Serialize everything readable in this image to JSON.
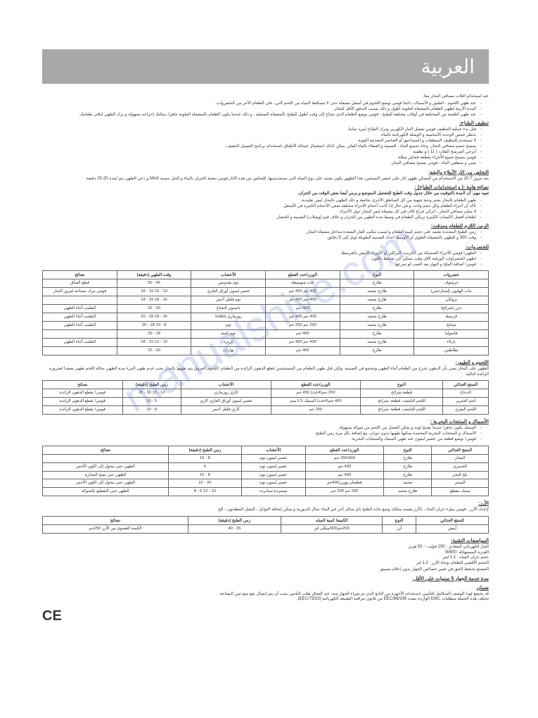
{
  "watermark": "manualshive.com",
  "title": "العربية",
  "intro": {
    "head": "عند استخدام الثلاث مصافي البخار معا:",
    "items": [
      "عند طهي اللحوم ، الطيور و الأسماك، دائما قومي بوضع اللحوم في أسفل مصفاة حتى لا تتساقط المياه من اللحم الني، على الطعام الآخر من الخضروات.",
      "المدة الأزمة لطهي الطعام بالمصفاة العلوية أطول و ذلك بسبب التدفق الأقل للبخار.",
      "عند طهي أطعمة من المختلفة في أوقات مختلفة للطبخ ، قومي بوضع الطعام الذي يحتاج إلى وقت أطول للطبخ بالمصفاة السفلية ، و ذلك عندما يكون الطعام بالمصفاة العلوية جاهزا, يمكنك إخراجه بسهولة و ترك الطهي لباقي طعامك."
    ]
  },
  "cleaning": {
    "head": "تنظيف الطباخ:",
    "items": [
      "قبل بدء عملية التنظيف قومي بفصل التيار الكهربي وترك الطباخ ليبرد تماما.",
      "بحظر غمس الوحدة الأساسية و الوصلة الكهربائية بالماء.",
      "لا تستخدم للتنظيف المنظفات و المساحيق أو العناصر المعدنية القوية.",
      "يمسح جسم مصافي البخار، وعاء تجميع الماء ، الصينية و الغطاء بالماء الفاتر. يمكن كذلك استعمال غسالة الأطباق باستخدام برنامج الغسيل الخفيف.",
      "أنزعي المرشح الطارد ( 11 ) و نظفيه.",
      "قومي بمسح جميع الأجزاء بقطعة قماش مبللة.",
      "صبي و شطفي الماء ، قومي بمسح مصافي البخار."
    ]
  },
  "descale": {
    "head": "التخلص من اثار الأملاح والبقع:",
    "text": "بعد مرور 7-10 من الاستخدام من الممكن ظهور اثار على عنصر التسخين، هذا الظهور يكون يعتمد على نوع المياه التي تستخدمينها. للتخلص من هذه الاثار قومي بتعبئة الخزان بالماء و الخل بنسبة MAX و دعي الطهي يتم لمدة 20-25 دقيقة."
  },
  "tips": {
    "head": "نصائح هامة :( و استخدامات الطباخ) :",
    "sub": "تنبيه مهم: أن المدة بالتوقيت من خلال جدول وقت الطبخ للتشغيل المتوضع و يزمن أيضا بعض الوقت من الخزان.",
    "items": [
      "طهي الطعام بالبخار يعتبر وجبة شهية من كل المناطق الأخرى بخاصة و ذلك الطهي بالبخار ليس تقليدية.",
      "تأكد أن أجزاء الطعام وكل حجم واحد، و في حال إذا كانت أحجام الأجزاء مختلفة ضعي الأحجام الكبيرة في الأسفل.",
      "لا تملئ مصافي البخار ، اتركي فراغ كاف في كل مصفاة ليمر البخار حول الأجزاء.",
      "لطعام أفضل الكميات الكبيرة نرتكي الطعام في وسط مدة الطهي من الخزان و خلاف قيم (وصلات) الصينية و الخضار."
    ]
  },
  "timing": {
    "head": "الزمن اللازم للطعام ومدقت:",
    "items": [
      "زمن الطبخ المحددة تعتمد على حجم كمية الطعام و ليست مكتب القار الصعدة مداخل مصفاة البخار.",
      "وقت 300 و للطهي بالمصفاة العلوي أو الأوسط اعداد الصينية الطويلة اوتل إلى 5 دقائق."
    ]
  },
  "veg": {
    "head": "للخضروات:",
    "items": [
      "الطهي! قومي الأجزاء الصميكة من الكرنب، البركلي أو الأوردة الأبيض بالقرنبيط.",
      "اطهي الخضراوات الورقية لأقل وقت ممكن كي تحتفظ باللون.",
      "قومي! اضافة الملح و البهار بعد العيب لو سرعها."
    ]
  },
  "tableVeg": {
    "headers": [
      "خضروات",
      "النوع",
      "الوزن/عدد القطع",
      "الأعشاب",
      "وقت الطهي (دقيقة)",
      "نصائح"
    ],
    "rows": [
      [
        "خرشوف",
        "طازج",
        "ثلاث متوسطة",
        "ثوم بقدونس",
        "45 - 50",
        "قطع السأق"
      ],
      [
        "نبات الهليون (إستارجس)",
        "طازج مجمد",
        "400 جم 400 جم",
        "عصير ليمون أوراق الغاري",
        "13 - 15 16 - 18",
        "قومي بترك مساحة لمرور البخار"
      ],
      [
        "بروكلي",
        "طازج مجمد",
        "400 جم 400 جم",
        "ثوم فلفل أحمر",
        "16 - 18 15 - 18",
        ""
      ],
      [
        "جزر (شرائح)",
        "طازج",
        "400 جم",
        "يانسون النعناع",
        "20 - 22",
        "التقليب أثناء الطهي"
      ],
      [
        "قرنبيط",
        "طازج مجمد",
        "400 جم 400 جم",
        "روزماري Salbia",
        "16 - 18 18 - 20",
        "التقليب أثناء الطهي"
      ],
      [
        "سبانخ",
        "طازج مجمد",
        "250 جم 250 جم",
        "ثوم",
        "8 - 10 18 - 20",
        "التقليب أثناء الطهي"
      ],
      [
        "فاصوليا",
        "طازج",
        "400 جم",
        "ثوم بامية",
        "18 - 20",
        ""
      ],
      [
        "بازلاء",
        "طازج مجمد",
        "400 جم 400 جم",
        "كزبرة",
        "10 - 12 15 - 18",
        "التقليب أثناء الطهي"
      ],
      [
        "بطاطس",
        "طازج",
        "400 جم",
        "بهارات",
        "20 - 22",
        ""
      ]
    ]
  },
  "meat": {
    "head": "اللحوم و الطيور:",
    "text": "الطهي على البخار يعني بأن الدهون تخرج من الطعام أثناء الطهي وتتجمع في الصينية. ولكن قبل طهي الطعام من المستحسن قطع الدهون الزائدة من الطعام. اللحوم العروق يتم طهيها بالبخار يجب عدم طهي النيء مدة الطهي بحالة اللحم طهير تصغدا لضرورة الزائدة التالية."
  },
  "tableMeat": {
    "headers": [
      "المنتج الغذائي",
      "النوع",
      "الوزن/عدد القطع",
      "الأعشاب",
      "زمن الطبخ (دقيقة)",
      "نصائح"
    ],
    "rows": [
      [
        "الدجاج",
        "قطعة شرائح",
        "250 جم(4عدد) 450 جم",
        "كاري روزماري",
        "12 - 15 30 - 35",
        "قومي! بقطع الدهون الزائدة"
      ],
      [
        "لحم الخنزير",
        "اللحم الناشف، قطعة، شرائح",
        "400 جم(4عدد) السمك 2.5 سم",
        "عصير ليمون أوراق الغاري كاري",
        "5 - 10",
        "قومي! بقطع الدهون الزائدة"
      ],
      [
        "اللحم البقري",
        "اللحم الناشف، قطعة، شرائح",
        "250 جم",
        "كاري فلفل أحمر",
        "8 - 10",
        "قومي! بقطع الدهون الزائدة"
      ]
    ]
  },
  "fish": {
    "head": "الأسماك و المنتجات البحرية :",
    "items": [
      "السمك يكون جاهز! عندما تصبح لونه و يمكن الفصل من اللحم من شوكة بسهولة.",
      "الأسماك و المنتجات البحرية المجمدة يمكنها طهيها بدون ذوبان، مع إضافة بكل مرة زمن الطبخ.",
      "قومي! بوضع قطعة من عصير ليمون عند طهي السمك والمنتجات البحرية."
    ]
  },
  "tableFish": {
    "headers": [
      "المنتج الغذائي",
      "النوع",
      "الوزن/عدد القطع",
      "الأعشاب",
      "زمن الطبخ (دقيقة)",
      "نصائح"
    ],
    "rows": [
      [
        "المحار",
        "طازج",
        "250/400 جم",
        "عصير ليمون ثوم",
        "8 - 10",
        ""
      ],
      [
        "الجمبري",
        "طازج",
        "400 جم",
        "عصير ليمون ثوم",
        "6",
        "الطهي حتى يتحول إلى اللون الأحمر"
      ],
      [
        "بلح البحر",
        "طازج",
        "400 جم",
        "عصير ليمون ثوم",
        "8 - 10",
        "الطهي حتى تفتح المحارة"
      ],
      [
        "البستر",
        "مجمد",
        "قطعتان ووزن400جم",
        "عصير ليمون ثوم",
        "20 - 22",
        "الطهي حتى يتحول إلى اللون الأحمر"
      ],
      [
        "سمك مقطع",
        "طازج مجمد",
        "200 جم 200 جم",
        "مستردة سبانردة",
        "10 - 12 6 - 8",
        "الطهي حتى التقطيع بالشوكة"
      ]
    ]
  },
  "rice": {
    "head": "الأرز:",
    "text": "لإعداد الأرز ، قومي بملء خزان الماء ، بالأرز نفسه يمكنك وضع مادة الطبخ باي سائل آخر غير الماء .مثال الذيوريه و يمكن إضافة التوابل ، البصل المطحون ، الخ."
  },
  "tableRice": {
    "headers": [
      "المنتج الغذائي",
      "النوع",
      "الكمية/ كمية المياه",
      "زمن الطبخ (دقيقة)",
      "نصائح"
    ],
    "rows": [
      [
        "أبيض",
        "أرز",
        "200جم/300ميللي لتر",
        "35 - 40",
        "الكمية القصوى من الأرز 250جم"
      ]
    ]
  },
  "specs": {
    "head": "المواصفات التقنية:",
    "items": [
      "التيار الكهربائي المعادي : 230 فولت ~ 50 هرتز",
      "القدرة المستهلكة :W900",
      "حجم خزان المياه : 1.1 ليتر",
      "الحجم الأقصى للطعام بوعاء الأرز : 1.2 لتر"
    ],
    "note": "المصنع يحتفظ الحق في تغيير خصائص الجهاز بدون إعلام مسبق."
  },
  "warranty": {
    "head": "مدة خدمة الجهاز 5 سنوات على الأقل."
  },
  "guarantee": {
    "head": "ضمان",
    "items": [
      "قد تخضع لهذا الوصف المتكامل للتأمين باستخدام الأجهزة من التابع الذي تم شراء الجهاز منه. عند إلصاق طلب التأمين يجب أن يتم إتصال يقع منع ثمن البضاعة.",
      "تختلف هذه الجملة متطلبات EMC الواردة بصدد 89/336/EEC من قانون مراقبة الطبيعة الكهربائية (EEC/73/23)."
    ]
  },
  "ceMark": "CE"
}
